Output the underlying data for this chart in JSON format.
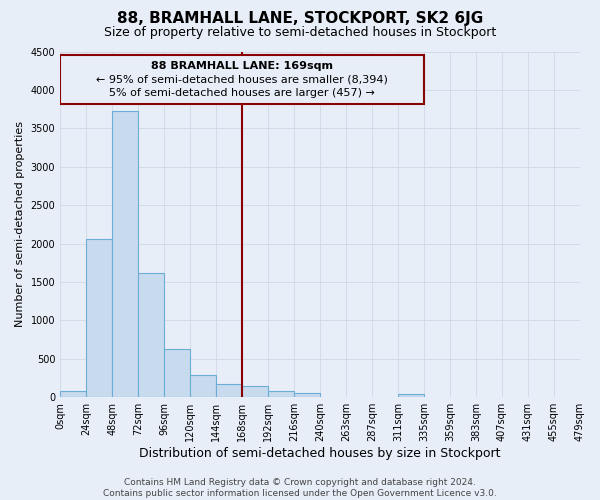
{
  "title": "88, BRAMHALL LANE, STOCKPORT, SK2 6JG",
  "subtitle": "Size of property relative to semi-detached houses in Stockport",
  "xlabel": "Distribution of semi-detached houses by size in Stockport",
  "ylabel": "Number of semi-detached properties",
  "footer_line1": "Contains HM Land Registry data © Crown copyright and database right 2024.",
  "footer_line2": "Contains public sector information licensed under the Open Government Licence v3.0.",
  "annotation_line1": "88 BRAMHALL LANE: 169sqm",
  "annotation_line2": "← 95% of semi-detached houses are smaller (8,394)",
  "annotation_line3": "5% of semi-detached houses are larger (457) →",
  "bin_edges": [
    0,
    24,
    48,
    72,
    96,
    120,
    144,
    168,
    192,
    216,
    240,
    264,
    288,
    312,
    336,
    360,
    384,
    408,
    432,
    456,
    480
  ],
  "bin_counts": [
    80,
    2060,
    3720,
    1620,
    630,
    290,
    170,
    140,
    80,
    50,
    0,
    0,
    0,
    45,
    0,
    0,
    0,
    0,
    0,
    0
  ],
  "bar_color": "#c8daee",
  "bar_edge_color": "#6aaed6",
  "vline_color": "#8b0000",
  "vline_x": 168,
  "box_edge_color": "#8b0000",
  "grid_color": "#d0d8e8",
  "background_color": "#e8eef8",
  "ylim": [
    0,
    4500
  ],
  "yticks": [
    0,
    500,
    1000,
    1500,
    2000,
    2500,
    3000,
    3500,
    4000,
    4500
  ],
  "title_fontsize": 11,
  "subtitle_fontsize": 9,
  "xlabel_fontsize": 9,
  "ylabel_fontsize": 8,
  "tick_fontsize": 7,
  "annotation_fontsize": 8,
  "footer_fontsize": 6.5
}
